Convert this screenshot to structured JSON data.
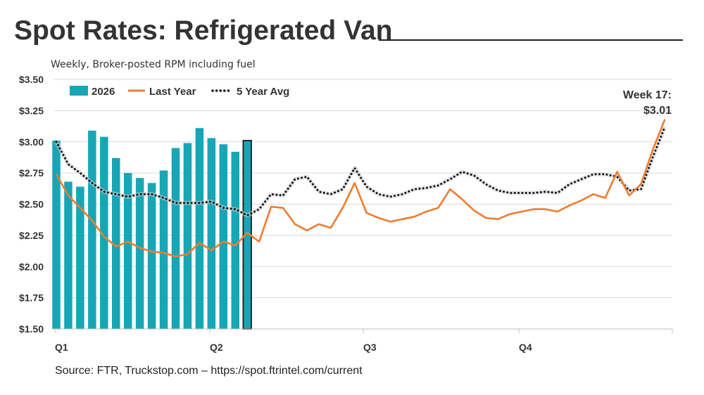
{
  "title": "Spot Rates: Refrigerated Van",
  "subtitle": "Weekly, Broker-posted RPM including fuel",
  "source": "Source: FTR, Truckstop.com – https://spot.ftrintel.com/current",
  "colors": {
    "bars": "#17a6b5",
    "last_year": "#ed7d31",
    "five_year_avg": "#111111",
    "grid": "#d9d9d9"
  },
  "chart_data": {
    "type": "bar",
    "title": "Spot Rates: Refrigerated Van",
    "subtitle": "Weekly, Broker-posted RPM including fuel",
    "ylim": [
      1.5,
      3.5
    ],
    "yticks": [
      "$1.50",
      "$1.75",
      "$2.00",
      "$2.25",
      "$2.50",
      "$2.75",
      "$3.00",
      "$3.25",
      "$3.50"
    ],
    "quarters": [
      "Q1",
      "Q2",
      "Q3",
      "Q4"
    ],
    "grid": true,
    "legend": "top-left",
    "series": [
      {
        "name": "2026",
        "type": "bar",
        "values": [
          3.01,
          2.68,
          2.64,
          3.09,
          3.04,
          2.87,
          2.75,
          2.71,
          2.67,
          2.77,
          2.95,
          2.99,
          3.11,
          3.03,
          2.98,
          2.92,
          3.01
        ]
      },
      {
        "name": "Last Year",
        "type": "line",
        "values": [
          2.74,
          2.57,
          2.47,
          2.37,
          2.24,
          2.16,
          2.2,
          2.15,
          2.12,
          2.11,
          2.08,
          2.1,
          2.19,
          2.13,
          2.2,
          2.17,
          2.27,
          2.2,
          2.48,
          2.47,
          2.34,
          2.29,
          2.34,
          2.31,
          2.47,
          2.67,
          2.43,
          2.39,
          2.36,
          2.38,
          2.4,
          2.44,
          2.47,
          2.62,
          2.54,
          2.45,
          2.39,
          2.38,
          2.42,
          2.44,
          2.46,
          2.46,
          2.44,
          2.49,
          2.53,
          2.58,
          2.55,
          2.76,
          2.57,
          2.66,
          2.94,
          3.18
        ]
      },
      {
        "name": "5 Year Avg",
        "type": "dotted-line",
        "values": [
          3.0,
          2.82,
          2.75,
          2.67,
          2.6,
          2.58,
          2.56,
          2.58,
          2.58,
          2.55,
          2.51,
          2.51,
          2.51,
          2.52,
          2.47,
          2.46,
          2.41,
          2.46,
          2.58,
          2.57,
          2.7,
          2.72,
          2.6,
          2.58,
          2.62,
          2.79,
          2.64,
          2.58,
          2.56,
          2.58,
          2.62,
          2.63,
          2.65,
          2.7,
          2.76,
          2.73,
          2.66,
          2.61,
          2.59,
          2.59,
          2.59,
          2.6,
          2.59,
          2.66,
          2.7,
          2.74,
          2.74,
          2.72,
          2.61,
          2.62,
          2.88,
          3.12
        ]
      }
    ],
    "annotation": {
      "line1": "Week 17:",
      "line2": "$3.01"
    }
  }
}
